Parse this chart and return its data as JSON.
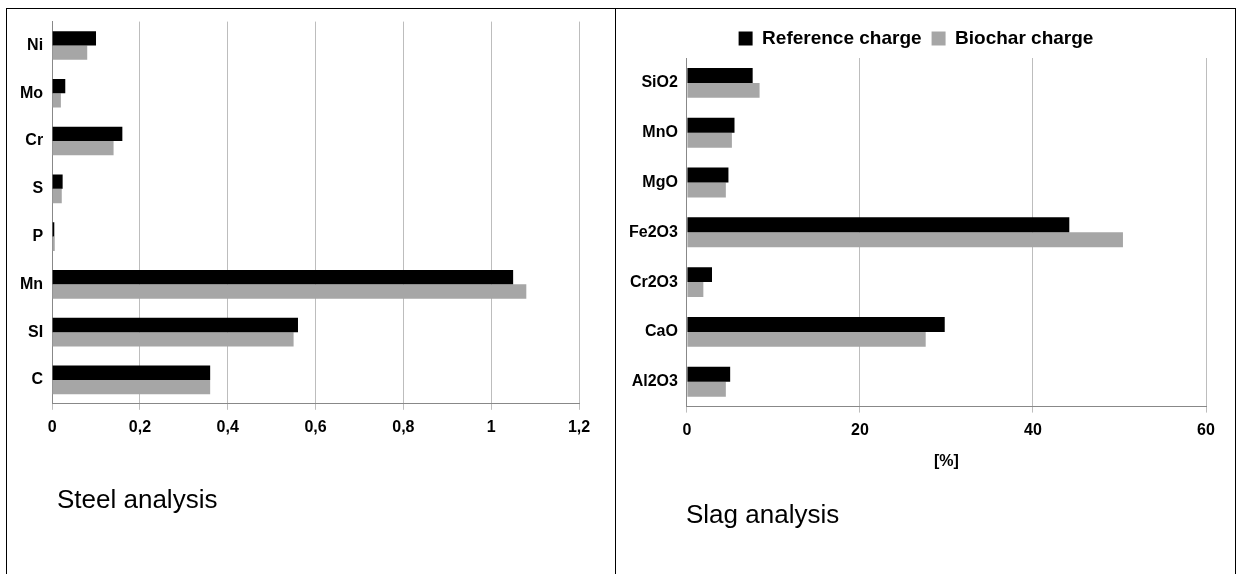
{
  "chart_data": [
    {
      "type": "bar",
      "orientation": "horizontal",
      "categories": [
        "Ni",
        "Mo",
        "Cr",
        "S",
        "P",
        "Mn",
        "SI",
        "C"
      ],
      "series": [
        {
          "color": "#000000",
          "values": [
            0.1,
            0.03,
            0.16,
            0.024,
            0.005,
            1.05,
            0.56,
            0.36
          ]
        },
        {
          "color": "#a6a6a6",
          "values": [
            0.08,
            0.02,
            0.14,
            0.022,
            0.006,
            1.08,
            0.55,
            0.36
          ]
        }
      ],
      "xlim": [
        0,
        1.2
      ],
      "xticks": [
        0,
        {
          "value": 0.2,
          "label": "0,2"
        },
        {
          "value": 0.4,
          "label": "0,4"
        },
        {
          "value": 0.6,
          "label": "0,6"
        },
        {
          "value": 0.8,
          "label": "0,8"
        },
        1,
        {
          "value": 1.2,
          "label": "1,2"
        }
      ],
      "grid": "x",
      "legend": false,
      "annotations": [
        "Steel analysis"
      ]
    },
    {
      "type": "bar",
      "orientation": "horizontal",
      "categories": [
        "SiO2",
        "MnO",
        "MgO",
        "Fe2O3",
        "Cr2O3",
        "CaO",
        "Al2O3"
      ],
      "series": [
        {
          "name": "Reference charge",
          "color": "#000000",
          "values": [
            7.6,
            5.5,
            4.8,
            44.2,
            2.9,
            29.8,
            5.0
          ]
        },
        {
          "name": "Biochar charge",
          "color": "#a6a6a6",
          "values": [
            8.4,
            5.2,
            4.5,
            50.4,
            1.9,
            27.6,
            4.5
          ]
        }
      ],
      "xlim": [
        0,
        60
      ],
      "xticks": [
        0,
        20,
        40,
        60
      ],
      "xlabel": "[%]",
      "grid": "x",
      "legend": "top",
      "annotations": [
        "Slag analysis"
      ]
    }
  ]
}
